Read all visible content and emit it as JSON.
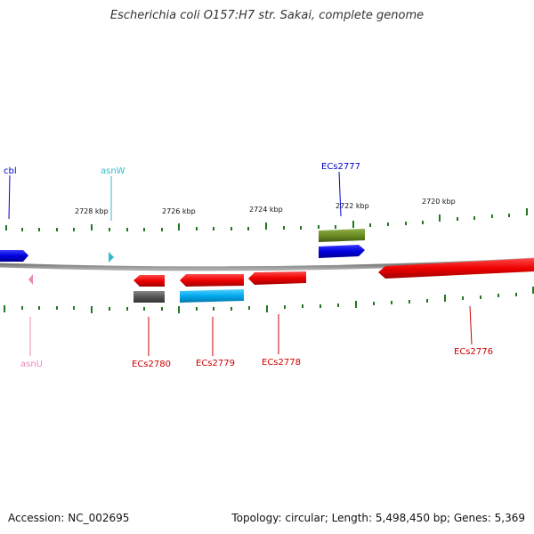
{
  "title": "Escherichia coli O157:H7 str. Sakai, complete genome",
  "footer": {
    "accession": "Accession: NC_002695",
    "topology": "Topology: circular; Length: 5,498,450 bp; Genes: 5,369"
  },
  "scale_labels": [
    "2728 kbp",
    "2726 kbp",
    "2724 kbp",
    "2722 kbp",
    "2720 kbp"
  ],
  "genes": {
    "cbl": "cbl",
    "asnW": "asnW",
    "ECs2777": "ECs2777",
    "asnU": "asnU",
    "ECs2780": "ECs2780",
    "ECs2779": "ECs2779",
    "ECs2778": "ECs2778",
    "ECs2776": "ECs2776"
  },
  "colors": {
    "forward_cds": "#0000dd",
    "reverse_cds": "#ee0000",
    "trna_forward": "#33bbcc",
    "trna_reverse": "#ee88bb",
    "misc_olive": "#6b8e23",
    "misc_gray": "#555555",
    "misc_cyan": "#00aaee",
    "backbone": "#888888",
    "ticks": "#227722"
  }
}
